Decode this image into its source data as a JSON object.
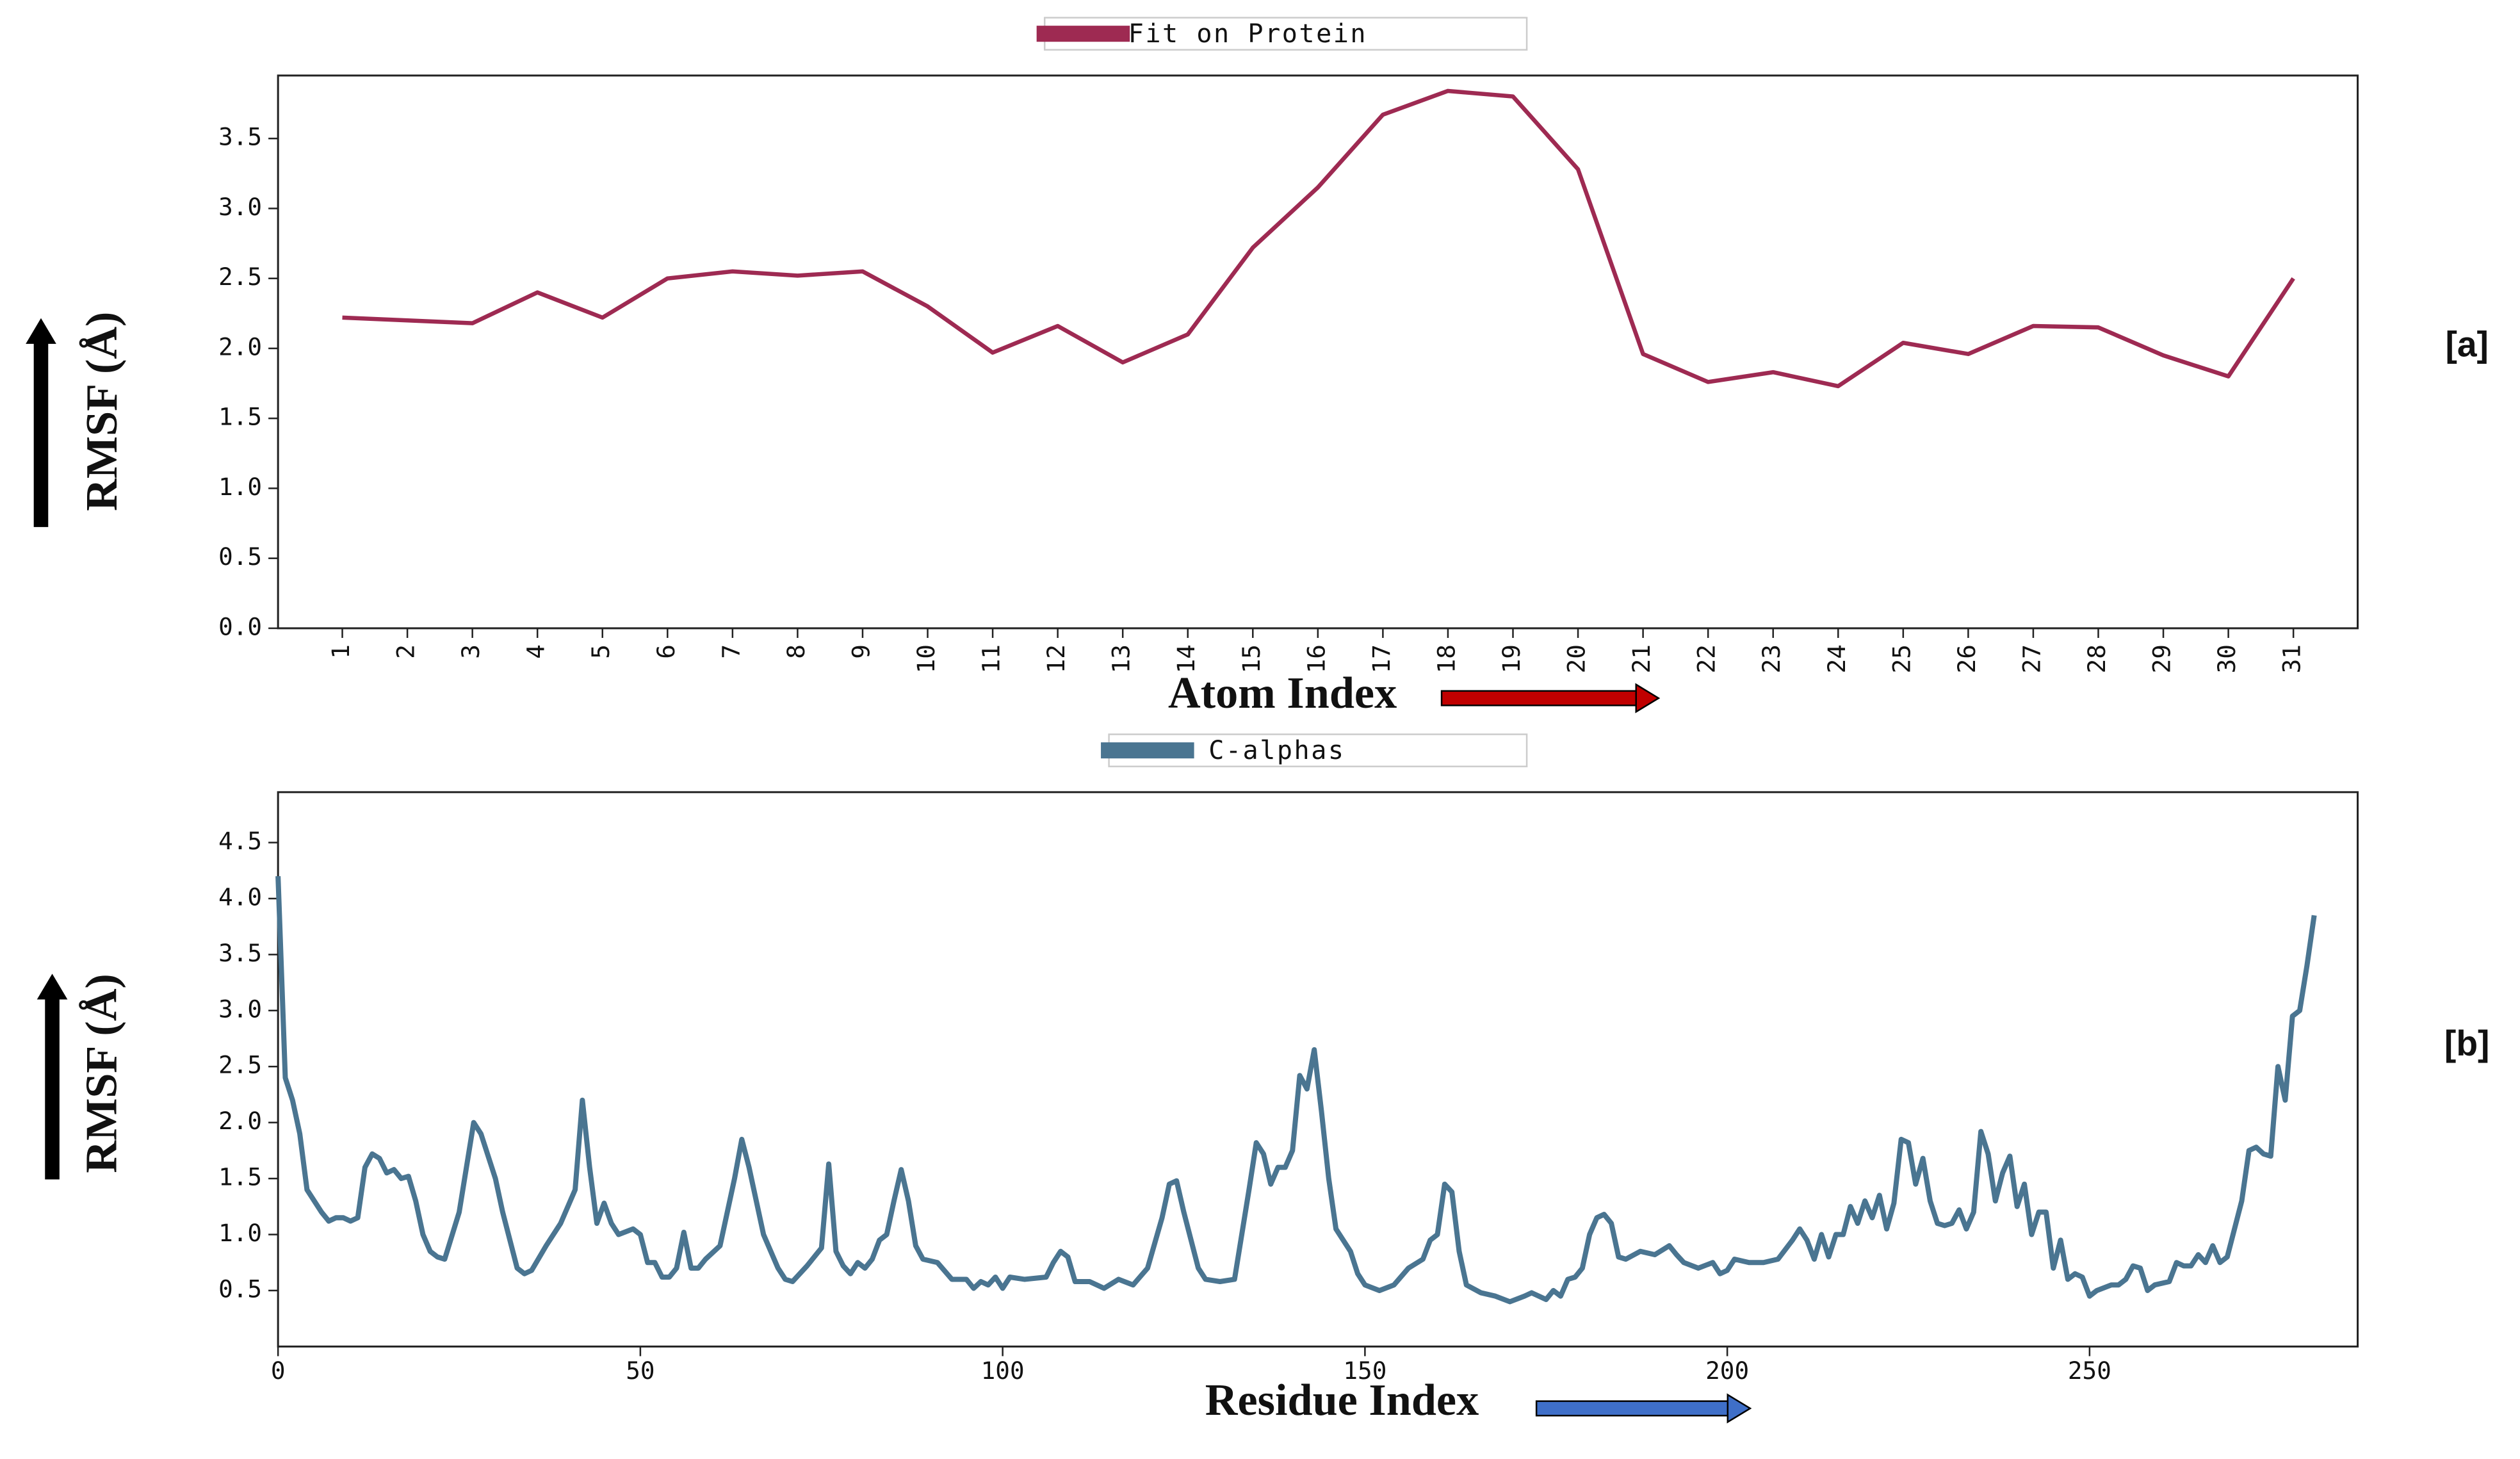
{
  "chart_data": [
    {
      "type": "line",
      "legend": "top-center",
      "annotation": "[a]",
      "x_label": "Atom Index",
      "y_label": "RMSF (Å)",
      "categories": [
        "1",
        "2",
        "3",
        "4",
        "5",
        "6",
        "7",
        "8",
        "9",
        "10",
        "11",
        "12",
        "13",
        "14",
        "15",
        "16",
        "17",
        "18",
        "19",
        "20",
        "21",
        "22",
        "23",
        "24",
        "25",
        "26",
        "27",
        "28",
        "29",
        "30",
        "31"
      ],
      "series": [
        {
          "name": "Fit on Protein",
          "color": "#9e2a52",
          "values": [
            2.22,
            2.2,
            2.18,
            2.4,
            2.22,
            2.5,
            2.55,
            2.52,
            2.55,
            2.3,
            1.97,
            2.16,
            1.9,
            2.1,
            2.72,
            3.15,
            3.67,
            3.84,
            3.8,
            3.28,
            1.96,
            1.76,
            1.83,
            1.73,
            2.04,
            1.96,
            2.16,
            2.15,
            1.95,
            1.8,
            2.5
          ]
        }
      ],
      "ylim": [
        0,
        3.95
      ],
      "yticks": [
        {
          "value": 0,
          "label": "0.0"
        },
        0.5,
        {
          "value": 1,
          "label": "1.0"
        },
        1.5,
        {
          "value": 2,
          "label": "2.0"
        },
        2.5,
        {
          "value": 3,
          "label": "3.0"
        },
        3.5
      ]
    },
    {
      "type": "line",
      "legend": "top-center",
      "annotation": "[b]",
      "x_label": "Residue Index",
      "y_label": "RMSF (Å)",
      "x": [
        0,
        1,
        2,
        3,
        4,
        5,
        6,
        7,
        8,
        9,
        10,
        11,
        12,
        13,
        14,
        15,
        16,
        17,
        18,
        19,
        20,
        21,
        22,
        23,
        25,
        27,
        28,
        30,
        31,
        33,
        34,
        35,
        37,
        39,
        41,
        42,
        43,
        44,
        45,
        46,
        47,
        49,
        50,
        51,
        52,
        53,
        54,
        55,
        56,
        57,
        58,
        59,
        61,
        63,
        64,
        65,
        67,
        69,
        70,
        71,
        73,
        74,
        75,
        76,
        77,
        78,
        79,
        80,
        81,
        82,
        83,
        84,
        85,
        86,
        87,
        88,
        89,
        91,
        93,
        95,
        96,
        97,
        98,
        99,
        100,
        101,
        103,
        106,
        107,
        108,
        109,
        110,
        112,
        114,
        116,
        118,
        120,
        122,
        123,
        124,
        125,
        127,
        128,
        130,
        132,
        134,
        135,
        136,
        137,
        138,
        139,
        140,
        141,
        142,
        143,
        144,
        145,
        146,
        147,
        148,
        149,
        150,
        152,
        154,
        156,
        158,
        159,
        160,
        161,
        162,
        163,
        164,
        166,
        168,
        170,
        172,
        173,
        175,
        176,
        177,
        178,
        179,
        180,
        181,
        182,
        183,
        184,
        185,
        186,
        188,
        190,
        192,
        193,
        194,
        196,
        198,
        199,
        200,
        201,
        203,
        205,
        207,
        209,
        210,
        211,
        212,
        213,
        214,
        215,
        216,
        217,
        218,
        219,
        220,
        221,
        222,
        223,
        224,
        225,
        226,
        227,
        228,
        229,
        230,
        231,
        232,
        233,
        234,
        235,
        236,
        237,
        238,
        239,
        240,
        241,
        242,
        243,
        244,
        245,
        246,
        247,
        248,
        249,
        250,
        251,
        253,
        254,
        255,
        256,
        257,
        258,
        259,
        261,
        262,
        263,
        264,
        265,
        266,
        267,
        268,
        269,
        271,
        272,
        273,
        274,
        275,
        276,
        277,
        278,
        279,
        280,
        281
      ],
      "series": [
        {
          "name": "C-alphas",
          "color": "#4a7591",
          "values": [
            4.2,
            2.4,
            2.2,
            1.9,
            1.4,
            1.3,
            1.2,
            1.12,
            1.15,
            1.15,
            1.12,
            1.15,
            1.6,
            1.72,
            1.68,
            1.55,
            1.58,
            1.5,
            1.52,
            1.3,
            1.0,
            0.85,
            0.8,
            0.78,
            1.2,
            2.0,
            1.9,
            1.5,
            1.2,
            0.7,
            0.65,
            0.68,
            0.9,
            1.1,
            1.4,
            2.2,
            1.6,
            1.1,
            1.28,
            1.1,
            1.0,
            1.05,
            1.0,
            0.75,
            0.75,
            0.62,
            0.62,
            0.7,
            1.02,
            0.7,
            0.7,
            0.78,
            0.9,
            1.5,
            1.85,
            1.6,
            1.0,
            0.7,
            0.6,
            0.58,
            0.72,
            0.8,
            0.88,
            1.63,
            0.85,
            0.72,
            0.65,
            0.75,
            0.7,
            0.78,
            0.95,
            1.0,
            1.3,
            1.58,
            1.3,
            0.9,
            0.78,
            0.75,
            0.6,
            0.6,
            0.52,
            0.58,
            0.55,
            0.62,
            0.52,
            0.62,
            0.6,
            0.62,
            0.75,
            0.85,
            0.8,
            0.58,
            0.58,
            0.52,
            0.6,
            0.55,
            0.7,
            1.15,
            1.45,
            1.48,
            1.2,
            0.7,
            0.6,
            0.58,
            0.6,
            1.4,
            1.82,
            1.72,
            1.45,
            1.6,
            1.6,
            1.75,
            2.42,
            2.3,
            2.65,
            2.1,
            1.5,
            1.05,
            0.95,
            0.85,
            0.65,
            0.55,
            0.5,
            0.55,
            0.7,
            0.78,
            0.95,
            1.0,
            1.45,
            1.38,
            0.85,
            0.55,
            0.48,
            0.45,
            0.4,
            0.45,
            0.48,
            0.42,
            0.5,
            0.45,
            0.6,
            0.62,
            0.7,
            1.0,
            1.15,
            1.18,
            1.1,
            0.8,
            0.78,
            0.85,
            0.82,
            0.9,
            0.82,
            0.75,
            0.7,
            0.75,
            0.65,
            0.68,
            0.78,
            0.75,
            0.75,
            0.78,
            0.95,
            1.05,
            0.95,
            0.78,
            1.0,
            0.8,
            1.0,
            1.0,
            1.25,
            1.1,
            1.3,
            1.15,
            1.35,
            1.05,
            1.28,
            1.85,
            1.82,
            1.45,
            1.68,
            1.3,
            1.1,
            1.08,
            1.1,
            1.22,
            1.05,
            1.2,
            1.92,
            1.72,
            1.3,
            1.55,
            1.7,
            1.25,
            1.45,
            1.0,
            1.2,
            1.2,
            0.7,
            0.95,
            0.6,
            0.65,
            0.62,
            0.45,
            0.5,
            0.55,
            0.55,
            0.6,
            0.72,
            0.7,
            0.5,
            0.55,
            0.58,
            0.75,
            0.72,
            0.72,
            0.82,
            0.75,
            0.9,
            0.75,
            0.8,
            1.3,
            1.75,
            1.78,
            1.72,
            1.7,
            2.5,
            2.2,
            2.95,
            3.0,
            3.4,
            3.85
          ]
        }
      ],
      "xlim": [
        0,
        287
      ],
      "xticks": [
        0,
        50,
        100,
        150,
        200,
        250
      ],
      "ylim": [
        0,
        4.95
      ],
      "yticks": [
        0.5,
        {
          "value": 1,
          "label": "1.0"
        },
        1.5,
        {
          "value": 2,
          "label": "2.0"
        },
        2.5,
        {
          "value": 3,
          "label": "3.0"
        },
        3.5,
        {
          "value": 4,
          "label": "4.0"
        },
        4.5
      ]
    }
  ]
}
